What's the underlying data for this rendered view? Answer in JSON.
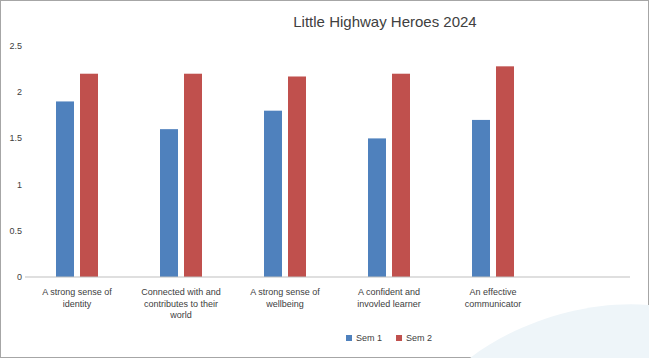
{
  "chart_data": {
    "type": "bar",
    "title": "Little Highway Heroes 2024",
    "categories": [
      "A strong sense of identity",
      "Connected with and contributes to their world",
      "A strong sense of wellbeing",
      "A confident and invovled learner",
      "An effective communicator"
    ],
    "series": [
      {
        "name": "Sem 1",
        "color": "#4f81bd",
        "values": [
          1.9,
          1.6,
          1.8,
          1.5,
          1.7
        ]
      },
      {
        "name": "Sem 2",
        "color": "#c0504d",
        "values": [
          2.2,
          2.2,
          2.17,
          2.2,
          2.28
        ]
      }
    ],
    "ylim": [
      0,
      2.5
    ],
    "yticks": [
      0,
      0.5,
      1,
      1.5,
      2,
      2.5
    ],
    "grid": false,
    "legend": "bottom"
  }
}
